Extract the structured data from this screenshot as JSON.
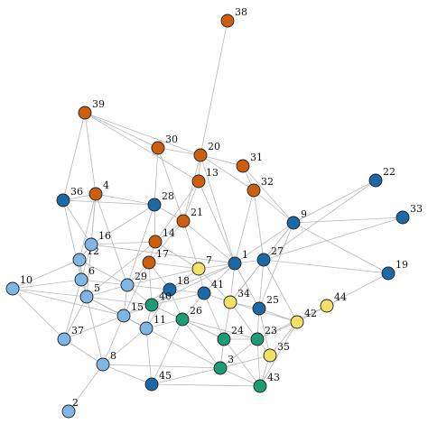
{
  "colors": {
    "orange": "#cc5f0e",
    "darkblue": "#1b69a6",
    "lightblue": "#7fb6e6",
    "yellow": "#f3e067",
    "green": "#1f9b75",
    "edge": "#b9b9b9",
    "label": "#111111"
  },
  "nodes": [
    {
      "id": "1",
      "color": "darkblue"
    },
    {
      "id": "2",
      "color": "lightblue"
    },
    {
      "id": "3",
      "color": "green"
    },
    {
      "id": "4",
      "color": "orange"
    },
    {
      "id": "5",
      "color": "lightblue"
    },
    {
      "id": "6",
      "color": "lightblue"
    },
    {
      "id": "7",
      "color": "yellow"
    },
    {
      "id": "8",
      "color": "lightblue"
    },
    {
      "id": "9",
      "color": "darkblue"
    },
    {
      "id": "10",
      "color": "lightblue"
    },
    {
      "id": "11",
      "color": "lightblue"
    },
    {
      "id": "12",
      "color": "lightblue"
    },
    {
      "id": "13",
      "color": "orange"
    },
    {
      "id": "14",
      "color": "orange"
    },
    {
      "id": "15",
      "color": "lightblue"
    },
    {
      "id": "16",
      "color": "lightblue"
    },
    {
      "id": "17",
      "color": "orange"
    },
    {
      "id": "18",
      "color": "darkblue"
    },
    {
      "id": "19",
      "color": "darkblue"
    },
    {
      "id": "20",
      "color": "orange"
    },
    {
      "id": "21",
      "color": "orange"
    },
    {
      "id": "22",
      "color": "darkblue"
    },
    {
      "id": "23",
      "color": "green"
    },
    {
      "id": "24",
      "color": "green"
    },
    {
      "id": "25",
      "color": "darkblue"
    },
    {
      "id": "26",
      "color": "green"
    },
    {
      "id": "27",
      "color": "darkblue"
    },
    {
      "id": "28",
      "color": "darkblue"
    },
    {
      "id": "29",
      "color": "lightblue"
    },
    {
      "id": "30",
      "color": "orange"
    },
    {
      "id": "31",
      "color": "orange"
    },
    {
      "id": "32",
      "color": "orange"
    },
    {
      "id": "33",
      "color": "darkblue"
    },
    {
      "id": "34",
      "color": "yellow"
    },
    {
      "id": "35",
      "color": "yellow"
    },
    {
      "id": "36",
      "color": "darkblue"
    },
    {
      "id": "37",
      "color": "lightblue"
    },
    {
      "id": "38",
      "color": "orange"
    },
    {
      "id": "39",
      "color": "orange"
    },
    {
      "id": "40",
      "color": "green"
    },
    {
      "id": "41",
      "color": "darkblue"
    },
    {
      "id": "42",
      "color": "yellow"
    },
    {
      "id": "43",
      "color": "green"
    },
    {
      "id": "44",
      "color": "yellow"
    },
    {
      "id": "45",
      "color": "darkblue"
    }
  ],
  "edges": [
    [
      "38",
      "20"
    ],
    [
      "39",
      "30"
    ],
    [
      "39",
      "20"
    ],
    [
      "39",
      "36"
    ],
    [
      "39",
      "4"
    ],
    [
      "39",
      "13"
    ],
    [
      "30",
      "20"
    ],
    [
      "30",
      "28"
    ],
    [
      "30",
      "21"
    ],
    [
      "20",
      "31"
    ],
    [
      "20",
      "13"
    ],
    [
      "20",
      "32"
    ],
    [
      "20",
      "21"
    ],
    [
      "20",
      "1"
    ],
    [
      "31",
      "32"
    ],
    [
      "31",
      "9"
    ],
    [
      "13",
      "21"
    ],
    [
      "13",
      "14"
    ],
    [
      "13",
      "1"
    ],
    [
      "32",
      "27"
    ],
    [
      "32",
      "9"
    ],
    [
      "32",
      "1"
    ],
    [
      "21",
      "14"
    ],
    [
      "21",
      "17"
    ],
    [
      "21",
      "7"
    ],
    [
      "21",
      "1"
    ],
    [
      "21",
      "28"
    ],
    [
      "36",
      "4"
    ],
    [
      "36",
      "28"
    ],
    [
      "36",
      "16"
    ],
    [
      "36",
      "6"
    ],
    [
      "4",
      "28"
    ],
    [
      "4",
      "16"
    ],
    [
      "4",
      "12"
    ],
    [
      "4",
      "5"
    ],
    [
      "4",
      "29"
    ],
    [
      "28",
      "14"
    ],
    [
      "28",
      "16"
    ],
    [
      "28",
      "29"
    ],
    [
      "14",
      "17"
    ],
    [
      "14",
      "7"
    ],
    [
      "14",
      "16"
    ],
    [
      "14",
      "5"
    ],
    [
      "17",
      "29"
    ],
    [
      "17",
      "18"
    ],
    [
      "17",
      "40"
    ],
    [
      "17",
      "15"
    ],
    [
      "17",
      "7"
    ],
    [
      "16",
      "12"
    ],
    [
      "16",
      "6"
    ],
    [
      "16",
      "5"
    ],
    [
      "16",
      "1"
    ],
    [
      "12",
      "6"
    ],
    [
      "12",
      "10"
    ],
    [
      "12",
      "5"
    ],
    [
      "12",
      "29"
    ],
    [
      "6",
      "10"
    ],
    [
      "6",
      "5"
    ],
    [
      "6",
      "37"
    ],
    [
      "6",
      "29"
    ],
    [
      "10",
      "5"
    ],
    [
      "10",
      "15"
    ],
    [
      "10",
      "37"
    ],
    [
      "5",
      "15"
    ],
    [
      "5",
      "11"
    ],
    [
      "5",
      "37"
    ],
    [
      "5",
      "8"
    ],
    [
      "5",
      "29"
    ],
    [
      "5",
      "40"
    ],
    [
      "29",
      "18"
    ],
    [
      "29",
      "40"
    ],
    [
      "29",
      "15"
    ],
    [
      "29",
      "7"
    ],
    [
      "7",
      "1"
    ],
    [
      "7",
      "18"
    ],
    [
      "7",
      "41"
    ],
    [
      "7",
      "34"
    ],
    [
      "1",
      "27"
    ],
    [
      "1",
      "9"
    ],
    [
      "1",
      "41"
    ],
    [
      "1",
      "34"
    ],
    [
      "1",
      "25"
    ],
    [
      "1",
      "40"
    ],
    [
      "1",
      "18"
    ],
    [
      "27",
      "9"
    ],
    [
      "27",
      "22"
    ],
    [
      "27",
      "33"
    ],
    [
      "27",
      "19"
    ],
    [
      "27",
      "25"
    ],
    [
      "27",
      "34"
    ],
    [
      "27",
      "42"
    ],
    [
      "9",
      "22"
    ],
    [
      "9",
      "33"
    ],
    [
      "9",
      "19"
    ],
    [
      "9",
      "25"
    ],
    [
      "9",
      "34"
    ],
    [
      "18",
      "41"
    ],
    [
      "18",
      "40"
    ],
    [
      "18",
      "26"
    ],
    [
      "18",
      "11"
    ],
    [
      "18",
      "15"
    ],
    [
      "41",
      "34"
    ],
    [
      "41",
      "24"
    ],
    [
      "41",
      "26"
    ],
    [
      "41",
      "40"
    ],
    [
      "34",
      "25"
    ],
    [
      "34",
      "42"
    ],
    [
      "34",
      "24"
    ],
    [
      "34",
      "23"
    ],
    [
      "25",
      "42"
    ],
    [
      "25",
      "23"
    ],
    [
      "25",
      "35"
    ],
    [
      "42",
      "44"
    ],
    [
      "42",
      "35"
    ],
    [
      "42",
      "23"
    ],
    [
      "42",
      "43"
    ],
    [
      "44",
      "19"
    ],
    [
      "44",
      "23"
    ],
    [
      "40",
      "26"
    ],
    [
      "40",
      "11"
    ],
    [
      "40",
      "15"
    ],
    [
      "40",
      "24"
    ],
    [
      "15",
      "11"
    ],
    [
      "15",
      "8"
    ],
    [
      "15",
      "37"
    ],
    [
      "11",
      "8"
    ],
    [
      "11",
      "26"
    ],
    [
      "11",
      "45"
    ],
    [
      "11",
      "3"
    ],
    [
      "26",
      "24"
    ],
    [
      "26",
      "3"
    ],
    [
      "26",
      "23"
    ],
    [
      "24",
      "3"
    ],
    [
      "24",
      "23"
    ],
    [
      "24",
      "43"
    ],
    [
      "23",
      "35"
    ],
    [
      "23",
      "43"
    ],
    [
      "23",
      "3"
    ],
    [
      "35",
      "43"
    ],
    [
      "35",
      "3"
    ],
    [
      "3",
      "43"
    ],
    [
      "3",
      "45"
    ],
    [
      "37",
      "8"
    ],
    [
      "8",
      "2"
    ],
    [
      "8",
      "45"
    ],
    [
      "8",
      "3"
    ],
    [
      "45",
      "43"
    ],
    [
      "45",
      "26"
    ]
  ]
}
